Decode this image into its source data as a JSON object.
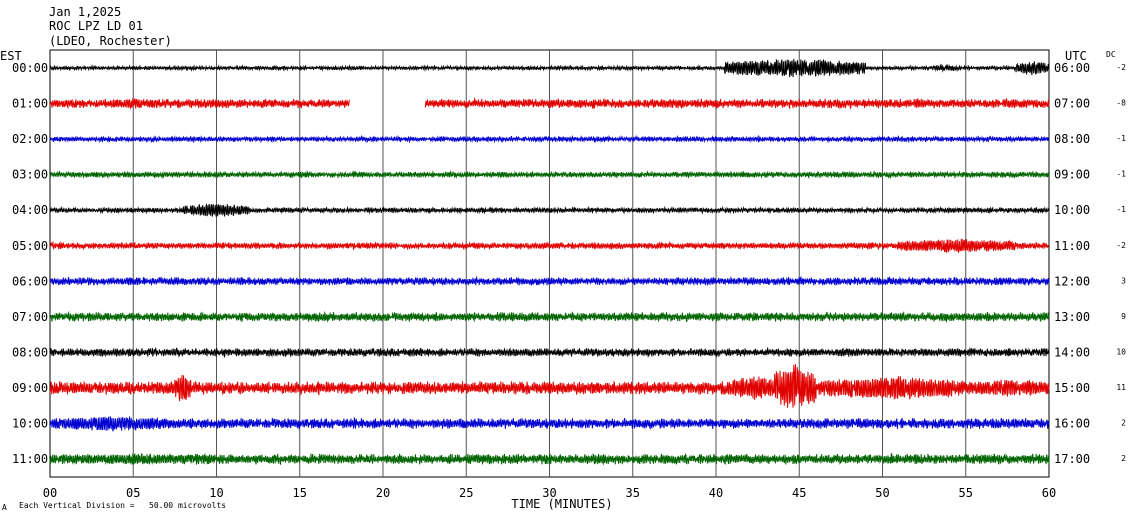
{
  "header": {
    "date": "Jan 1,2025",
    "station": "ROC LPZ LD 01",
    "network": "(LDEO, Rochester)"
  },
  "left_tz_label": "EST",
  "right_tz_label": "UTC",
  "dc_label": "DC",
  "footer_note": "Each Vertical Division =   50.00 microvolts",
  "footer_mark": "A",
  "trace_colors": [
    "#000000",
    "#e00000",
    "#0000d0",
    "#006400"
  ],
  "chart_data": {
    "type": "line",
    "title": "",
    "xlabel": "TIME (MINUTES)",
    "ylabel": "",
    "xlim": [
      0,
      60
    ],
    "x_ticks": [
      0,
      5,
      10,
      15,
      20,
      25,
      30,
      35,
      40,
      45,
      50,
      55,
      60
    ],
    "x_tick_labels": [
      "00",
      "05",
      "10",
      "15",
      "20",
      "25",
      "30",
      "35",
      "40",
      "45",
      "50",
      "55",
      "60"
    ],
    "grid": true,
    "rows": [
      {
        "est": "00:00",
        "utc": "06:00",
        "dc": "-2",
        "amp": 1.5,
        "events": [
          {
            "start": 40.5,
            "end": 49,
            "amp": 11
          },
          {
            "start": 53,
            "end": 54.5,
            "amp": 4
          },
          {
            "start": 58,
            "end": 60,
            "amp": 8
          }
        ]
      },
      {
        "est": "01:00",
        "utc": "07:00",
        "dc": "-8",
        "amp": 3.5,
        "gap": [
          18,
          22.5
        ],
        "events": [
          {
            "start": 3.5,
            "end": 6.5,
            "amp": 6
          },
          {
            "start": 48,
            "end": 48.8,
            "amp": 3
          }
        ]
      },
      {
        "est": "02:00",
        "utc": "08:00",
        "dc": "-1",
        "amp": 2,
        "events": []
      },
      {
        "est": "03:00",
        "utc": "09:00",
        "dc": "-1",
        "amp": 2.2,
        "events": []
      },
      {
        "est": "04:00",
        "utc": "10:00",
        "dc": "-1",
        "amp": 2,
        "events": [
          {
            "start": 8,
            "end": 12,
            "amp": 8
          }
        ]
      },
      {
        "est": "05:00",
        "utc": "11:00",
        "dc": "-2",
        "amp": 2.5,
        "events": [
          {
            "start": 51,
            "end": 58,
            "amp": 8
          }
        ]
      },
      {
        "est": "06:00",
        "utc": "12:00",
        "dc": "3",
        "amp": 3,
        "events": [
          {
            "start": 4.5,
            "end": 5.5,
            "amp": 5
          }
        ]
      },
      {
        "est": "07:00",
        "utc": "13:00",
        "dc": "9",
        "amp": 3.5,
        "events": []
      },
      {
        "est": "08:00",
        "utc": "14:00",
        "dc": "10",
        "amp": 3.2,
        "events": [
          {
            "start": 47,
            "end": 48,
            "amp": 5
          }
        ]
      },
      {
        "est": "09:00",
        "utc": "15:00",
        "dc": "11",
        "amp": 5,
        "events": [
          {
            "start": 7.5,
            "end": 8.5,
            "amp": 18
          },
          {
            "start": 40.5,
            "end": 44,
            "amp": 14
          },
          {
            "start": 43.5,
            "end": 46,
            "amp": 28
          },
          {
            "start": 46,
            "end": 55,
            "amp": 14
          },
          {
            "start": 55,
            "end": 60,
            "amp": 10
          }
        ]
      },
      {
        "est": "10:00",
        "utc": "16:00",
        "dc": "2",
        "amp": 4,
        "events": [
          {
            "start": 0,
            "end": 7.5,
            "amp": 9
          }
        ]
      },
      {
        "est": "11:00",
        "utc": "17:00",
        "dc": "2",
        "amp": 4,
        "events": [
          {
            "start": 0,
            "end": 10,
            "amp": 6
          },
          {
            "start": 25,
            "end": 27,
            "amp": 6
          }
        ]
      }
    ]
  }
}
